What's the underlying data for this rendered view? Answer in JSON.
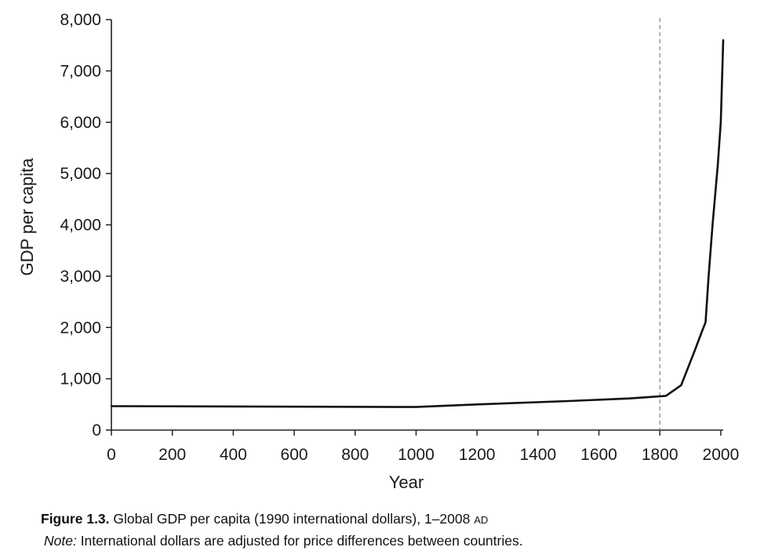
{
  "chart_data": {
    "type": "line",
    "title": "",
    "xlabel": "Year",
    "ylabel": "GDP per capita",
    "xlim": [
      0,
      2008
    ],
    "ylim": [
      0,
      8000
    ],
    "xticks": [
      0,
      200,
      400,
      600,
      800,
      1000,
      1200,
      1400,
      1600,
      1800,
      2000
    ],
    "yticks": [
      0,
      1000,
      2000,
      3000,
      4000,
      5000,
      6000,
      7000,
      8000
    ],
    "xtick_labels": [
      "0",
      "200",
      "400",
      "600",
      "800",
      "1000",
      "1200",
      "1400",
      "1600",
      "1800",
      "2000"
    ],
    "ytick_labels": [
      "0",
      "1,000",
      "2,000",
      "3,000",
      "4,000",
      "5,000",
      "6,000",
      "7,000",
      "8,000"
    ],
    "grid": false,
    "reference_line": {
      "x": 1800,
      "style": "dashed",
      "color": "#8a8a8a"
    },
    "series": [
      {
        "color": "#111111",
        "x": [
          1,
          1000,
          1200,
          1500,
          1700,
          1820,
          1870,
          1913,
          1940,
          1950,
          1960,
          1973,
          1990,
          2000,
          2008
        ],
        "y": [
          467,
          450,
          500,
          566,
          616,
          667,
          875,
          1525,
          1950,
          2100,
          3000,
          4000,
          5150,
          6000,
          7600
        ]
      }
    ]
  },
  "caption": {
    "figure_label": "Figure 1.3.",
    "figure_text": " Global GDP per capita (1990 international dollars), 1–2008 ",
    "era": "AD",
    "note_label": "Note:",
    "note_text": " International dollars are adjusted for price differences between countries."
  }
}
